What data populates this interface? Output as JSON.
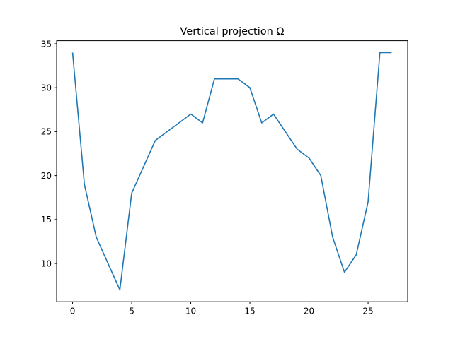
{
  "chart_data": {
    "type": "line",
    "title": "Vertical projection Ω",
    "xlabel": "",
    "ylabel": "",
    "xlim": [
      -1.35,
      28.35
    ],
    "ylim": [
      5.65,
      35.35
    ],
    "xticks": [
      0,
      5,
      10,
      15,
      20,
      25
    ],
    "yticks": [
      10,
      15,
      20,
      25,
      30,
      35
    ],
    "grid": false,
    "series": [
      {
        "color": "#1f77b4",
        "x": [
          0,
          1,
          2,
          3,
          4,
          5,
          6,
          7,
          8,
          9,
          10,
          11,
          12,
          13,
          14,
          15,
          16,
          17,
          18,
          19,
          20,
          21,
          22,
          23,
          24,
          25,
          26,
          27
        ],
        "y": [
          34,
          19,
          13,
          10,
          7,
          18,
          21,
          24,
          25,
          26,
          27,
          26,
          31,
          31,
          31,
          30,
          26,
          27,
          25,
          23,
          22,
          20,
          13,
          9,
          11,
          17,
          34,
          34
        ]
      }
    ]
  }
}
